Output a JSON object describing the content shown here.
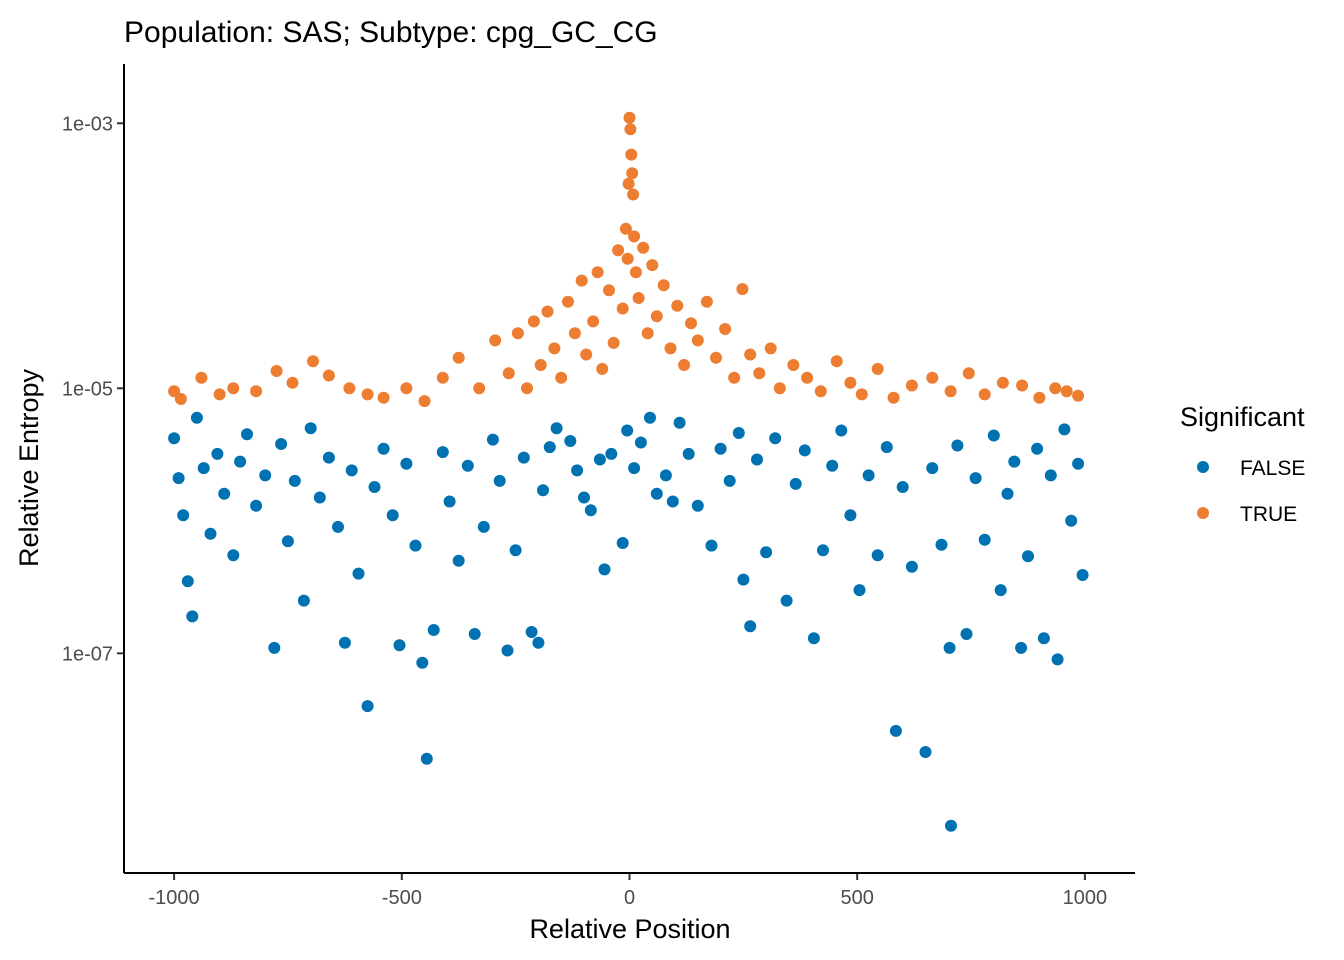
{
  "chart_data": {
    "type": "scatter",
    "title": "Population: SAS; Subtype: cpg_GC_CG",
    "xlabel": "Relative Position",
    "ylabel": "Relative Entropy",
    "x_ticks": [
      -1000,
      -500,
      0,
      500,
      1000
    ],
    "x_tick_labels": [
      "-1000",
      "-500",
      "0",
      "500",
      "1000"
    ],
    "y_scale": "log10",
    "y_ticks": [
      0.001,
      1e-05,
      1e-07
    ],
    "y_tick_labels": [
      "1e-03",
      "1e-05",
      "1e-07"
    ],
    "xlim": [
      -1110,
      1110
    ],
    "ylim": [
      2.2e-09,
      0.0028
    ],
    "grid": false,
    "legend": {
      "title": "Significant",
      "position": "right",
      "entries": [
        {
          "label": "FALSE",
          "color": "#0072B2"
        },
        {
          "label": "TRUE",
          "color": "#ED7D31"
        }
      ]
    },
    "series": [
      {
        "name": "FALSE",
        "color": "#0072B2",
        "points": [
          [
            -1000,
            4.2e-06
          ],
          [
            -990,
            2.1e-06
          ],
          [
            -980,
            1.1e-06
          ],
          [
            -970,
            3.5e-07
          ],
          [
            -960,
            1.9e-07
          ],
          [
            -950,
            6e-06
          ],
          [
            -935,
            2.5e-06
          ],
          [
            -920,
            8e-07
          ],
          [
            -905,
            3.2e-06
          ],
          [
            -890,
            1.6e-06
          ],
          [
            -870,
            5.5e-07
          ],
          [
            -855,
            2.8e-06
          ],
          [
            -840,
            4.5e-06
          ],
          [
            -820,
            1.3e-06
          ],
          [
            -800,
            2.2e-06
          ],
          [
            -780,
            1.1e-07
          ],
          [
            -765,
            3.8e-06
          ],
          [
            -750,
            7e-07
          ],
          [
            -735,
            2e-06
          ],
          [
            -715,
            2.5e-07
          ],
          [
            -700,
            5e-06
          ],
          [
            -680,
            1.5e-06
          ],
          [
            -660,
            3e-06
          ],
          [
            -640,
            9e-07
          ],
          [
            -625,
            1.2e-07
          ],
          [
            -610,
            2.4e-06
          ],
          [
            -595,
            4e-07
          ],
          [
            -575,
            4e-08
          ],
          [
            -560,
            1.8e-06
          ],
          [
            -540,
            3.5e-06
          ],
          [
            -520,
            1.1e-06
          ],
          [
            -505,
            1.15e-07
          ],
          [
            -490,
            2.7e-06
          ],
          [
            -470,
            6.5e-07
          ],
          [
            -455,
            8.5e-08
          ],
          [
            -445,
            1.6e-08
          ],
          [
            -430,
            1.5e-07
          ],
          [
            -410,
            3.3e-06
          ],
          [
            -395,
            1.4e-06
          ],
          [
            -375,
            5e-07
          ],
          [
            -355,
            2.6e-06
          ],
          [
            -340,
            1.4e-07
          ],
          [
            -320,
            9e-07
          ],
          [
            -300,
            4.1e-06
          ],
          [
            -285,
            2e-06
          ],
          [
            -268,
            1.05e-07
          ],
          [
            -250,
            6e-07
          ],
          [
            -232,
            3e-06
          ],
          [
            -215,
            1.45e-07
          ],
          [
            -200,
            1.2e-07
          ],
          [
            -190,
            1.7e-06
          ],
          [
            -175,
            3.6e-06
          ],
          [
            -160,
            5e-06
          ],
          [
            -130,
            4e-06
          ],
          [
            -115,
            2.4e-06
          ],
          [
            -100,
            1.5e-06
          ],
          [
            -85,
            1.2e-06
          ],
          [
            -65,
            2.9e-06
          ],
          [
            -55,
            4.3e-07
          ],
          [
            -40,
            3.2e-06
          ],
          [
            -15,
            6.8e-07
          ],
          [
            -5,
            4.8e-06
          ],
          [
            10,
            2.5e-06
          ],
          [
            25,
            3.9e-06
          ],
          [
            45,
            6e-06
          ],
          [
            60,
            1.6e-06
          ],
          [
            80,
            2.2e-06
          ],
          [
            95,
            1.4e-06
          ],
          [
            110,
            5.5e-06
          ],
          [
            130,
            3.2e-06
          ],
          [
            150,
            1.3e-06
          ],
          [
            180,
            6.5e-07
          ],
          [
            200,
            3.5e-06
          ],
          [
            220,
            2e-06
          ],
          [
            240,
            4.6e-06
          ],
          [
            250,
            3.6e-07
          ],
          [
            265,
            1.6e-07
          ],
          [
            280,
            2.9e-06
          ],
          [
            300,
            5.8e-07
          ],
          [
            320,
            4.2e-06
          ],
          [
            345,
            2.5e-07
          ],
          [
            365,
            1.9e-06
          ],
          [
            385,
            3.4e-06
          ],
          [
            405,
            1.3e-07
          ],
          [
            425,
            6e-07
          ],
          [
            445,
            2.6e-06
          ],
          [
            465,
            4.8e-06
          ],
          [
            485,
            1.1e-06
          ],
          [
            505,
            3e-07
          ],
          [
            525,
            2.2e-06
          ],
          [
            545,
            5.5e-07
          ],
          [
            565,
            3.6e-06
          ],
          [
            585,
            2.6e-08
          ],
          [
            600,
            1.8e-06
          ],
          [
            620,
            4.5e-07
          ],
          [
            650,
            1.8e-08
          ],
          [
            665,
            2.5e-06
          ],
          [
            685,
            6.6e-07
          ],
          [
            703,
            1.1e-07
          ],
          [
            706,
            5e-09
          ],
          [
            720,
            3.7e-06
          ],
          [
            740,
            1.4e-07
          ],
          [
            760,
            2.1e-06
          ],
          [
            780,
            7.2e-07
          ],
          [
            800,
            4.4e-06
          ],
          [
            815,
            3e-07
          ],
          [
            830,
            1.6e-06
          ],
          [
            845,
            2.8e-06
          ],
          [
            860,
            1.1e-07
          ],
          [
            875,
            5.4e-07
          ],
          [
            895,
            3.5e-06
          ],
          [
            910,
            1.3e-07
          ],
          [
            925,
            2.2e-06
          ],
          [
            940,
            9e-08
          ],
          [
            955,
            4.9e-06
          ],
          [
            970,
            1e-06
          ],
          [
            985,
            2.7e-06
          ],
          [
            995,
            3.9e-07
          ]
        ]
      },
      {
        "name": "TRUE",
        "color": "#ED7D31",
        "points": [
          [
            -1000,
            9.5e-06
          ],
          [
            -985,
            8.3e-06
          ],
          [
            -940,
            1.2e-05
          ],
          [
            -900,
            9e-06
          ],
          [
            -870,
            1e-05
          ],
          [
            -820,
            9.5e-06
          ],
          [
            -775,
            1.35e-05
          ],
          [
            -740,
            1.1e-05
          ],
          [
            -695,
            1.6e-05
          ],
          [
            -660,
            1.25e-05
          ],
          [
            -615,
            1e-05
          ],
          [
            -575,
            9e-06
          ],
          [
            -540,
            8.5e-06
          ],
          [
            -490,
            1e-05
          ],
          [
            -450,
            8e-06
          ],
          [
            -410,
            1.2e-05
          ],
          [
            -375,
            1.7e-05
          ],
          [
            -330,
            1e-05
          ],
          [
            -295,
            2.3e-05
          ],
          [
            -265,
            1.3e-05
          ],
          [
            -245,
            2.6e-05
          ],
          [
            -225,
            1e-05
          ],
          [
            -210,
            3.2e-05
          ],
          [
            -195,
            1.5e-05
          ],
          [
            -180,
            3.8e-05
          ],
          [
            -165,
            2e-05
          ],
          [
            -150,
            1.2e-05
          ],
          [
            -135,
            4.5e-05
          ],
          [
            -120,
            2.6e-05
          ],
          [
            -105,
            6.5e-05
          ],
          [
            -95,
            1.8e-05
          ],
          [
            -80,
            3.2e-05
          ],
          [
            -70,
            7.5e-05
          ],
          [
            -60,
            1.4e-05
          ],
          [
            -45,
            5.5e-05
          ],
          [
            -35,
            2.2e-05
          ],
          [
            -25,
            0.00011
          ],
          [
            -15,
            4e-05
          ],
          [
            -8,
            0.00016
          ],
          [
            -4,
            9.5e-05
          ],
          [
            -2,
            0.00035
          ],
          [
            0,
            0.0011
          ],
          [
            2,
            0.0009
          ],
          [
            4,
            0.00058
          ],
          [
            6,
            0.00042
          ],
          [
            8,
            0.00029
          ],
          [
            10,
            0.00014
          ],
          [
            14,
            7.5e-05
          ],
          [
            20,
            4.8e-05
          ],
          [
            30,
            0.000115
          ],
          [
            40,
            2.6e-05
          ],
          [
            50,
            8.5e-05
          ],
          [
            60,
            3.5e-05
          ],
          [
            75,
            6e-05
          ],
          [
            90,
            2e-05
          ],
          [
            105,
            4.2e-05
          ],
          [
            120,
            1.5e-05
          ],
          [
            135,
            3.1e-05
          ],
          [
            150,
            2.3e-05
          ],
          [
            170,
            4.5e-05
          ],
          [
            190,
            1.7e-05
          ],
          [
            210,
            2.8e-05
          ],
          [
            230,
            1.2e-05
          ],
          [
            248,
            5.6e-05
          ],
          [
            265,
            1.8e-05
          ],
          [
            285,
            1.3e-05
          ],
          [
            310,
            2e-05
          ],
          [
            330,
            1e-05
          ],
          [
            360,
            1.5e-05
          ],
          [
            390,
            1.2e-05
          ],
          [
            420,
            9.5e-06
          ],
          [
            455,
            1.6e-05
          ],
          [
            485,
            1.1e-05
          ],
          [
            510,
            9e-06
          ],
          [
            545,
            1.4e-05
          ],
          [
            580,
            8.5e-06
          ],
          [
            620,
            1.05e-05
          ],
          [
            665,
            1.2e-05
          ],
          [
            705,
            9.5e-06
          ],
          [
            745,
            1.3e-05
          ],
          [
            780,
            9e-06
          ],
          [
            820,
            1.1e-05
          ],
          [
            862,
            1.05e-05
          ],
          [
            900,
            8.5e-06
          ],
          [
            935,
            1e-05
          ],
          [
            960,
            9.5e-06
          ],
          [
            985,
            8.8e-06
          ]
        ]
      }
    ]
  }
}
